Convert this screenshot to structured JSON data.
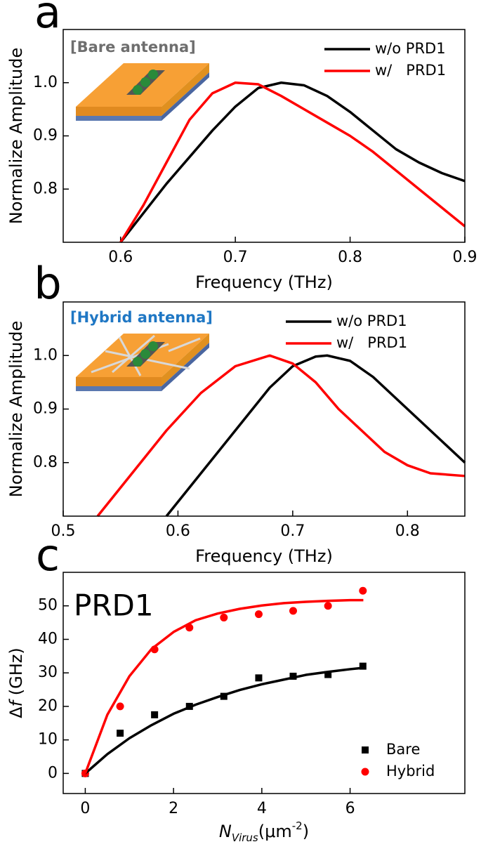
{
  "chart_data": [
    {
      "type": "line",
      "panel": "a",
      "annotation": "[Bare antenna]",
      "annotation_color": "#6e6e6e",
      "xlabel": "Frequency (THz)",
      "ylabel": "Normalize Amplitude",
      "xlim": [
        0.55,
        0.9
      ],
      "xticks": [
        0.6,
        0.7,
        0.8,
        0.9
      ],
      "ylim": [
        0.7,
        1.1
      ],
      "yticks": [
        0.8,
        0.9,
        {
          "value": 1,
          "label": "1.0"
        }
      ],
      "series": [
        {
          "name": "w/o PRD1",
          "color": "#000000",
          "x": [
            0.6,
            0.62,
            0.64,
            0.66,
            0.68,
            0.7,
            0.72,
            0.74,
            0.76,
            0.78,
            0.8,
            0.82,
            0.84,
            0.86,
            0.88,
            0.9
          ],
          "values": [
            0.7,
            0.755,
            0.81,
            0.86,
            0.91,
            0.955,
            0.99,
            1.0,
            0.995,
            0.975,
            0.945,
            0.91,
            0.875,
            0.85,
            0.83,
            0.815
          ]
        },
        {
          "name": "w/   PRD1",
          "color": "#ff0000",
          "x": [
            0.6,
            0.62,
            0.64,
            0.66,
            0.68,
            0.7,
            0.72,
            0.74,
            0.76,
            0.78,
            0.8,
            0.82,
            0.84,
            0.86,
            0.88,
            0.9
          ],
          "values": [
            0.7,
            0.77,
            0.85,
            0.93,
            0.98,
            1.0,
            0.997,
            0.975,
            0.95,
            0.925,
            0.9,
            0.87,
            0.835,
            0.8,
            0.765,
            0.73
          ]
        }
      ]
    },
    {
      "type": "line",
      "panel": "b",
      "annotation": "[Hybrid antenna]",
      "annotation_color": "#1f77c4",
      "xlabel": "Frequency (THz)",
      "ylabel": "Normalize Amplitude",
      "xlim": [
        0.5,
        0.85
      ],
      "xticks": [
        0.5,
        0.6,
        0.7,
        0.8
      ],
      "ylim": [
        0.7,
        1.1
      ],
      "yticks": [
        0.8,
        0.9,
        {
          "value": 1,
          "label": "1.0"
        }
      ],
      "series": [
        {
          "name": "w/o PRD1",
          "color": "#000000",
          "x": [
            0.59,
            0.62,
            0.65,
            0.68,
            0.7,
            0.72,
            0.73,
            0.75,
            0.77,
            0.79,
            0.81,
            0.83,
            0.85
          ],
          "values": [
            0.7,
            0.78,
            0.86,
            0.94,
            0.98,
            0.998,
            1.0,
            0.99,
            0.96,
            0.92,
            0.88,
            0.84,
            0.8
          ]
        },
        {
          "name": "w/   PRD1",
          "color": "#ff0000",
          "x": [
            0.53,
            0.56,
            0.59,
            0.62,
            0.65,
            0.68,
            0.7,
            0.72,
            0.74,
            0.76,
            0.78,
            0.8,
            0.82,
            0.85
          ],
          "values": [
            0.7,
            0.78,
            0.86,
            0.93,
            0.98,
            1.0,
            0.985,
            0.95,
            0.9,
            0.86,
            0.82,
            0.795,
            0.78,
            0.775
          ]
        }
      ]
    },
    {
      "type": "scatter",
      "panel": "c",
      "annotation": "PRD1",
      "annotation_color": "#000000",
      "xlabel": {
        "main": "N",
        "sub": "Virus",
        "unit": "(μm",
        "sup": "-2",
        "end": ")"
      },
      "ylabel": {
        "pre": "Δ",
        "var": "f",
        "post": " (GHz)"
      },
      "xlim": [
        -0.5,
        8.6
      ],
      "xticks": [
        0,
        2,
        4,
        6
      ],
      "ylim": [
        -6,
        60
      ],
      "yticks": [
        0,
        10,
        20,
        30,
        40,
        50
      ],
      "series": [
        {
          "name": "Bare",
          "color": "#000000",
          "marker": "square",
          "x": [
            0,
            0.79,
            1.57,
            2.36,
            3.14,
            3.93,
            4.71,
            5.5,
            6.29
          ],
          "values": [
            0,
            12,
            17.5,
            20,
            23,
            28.5,
            29,
            29.5,
            32
          ]
        },
        {
          "name": "Hybrid",
          "color": "#ff0000",
          "marker": "circle",
          "x": [
            0,
            0.79,
            1.57,
            2.36,
            3.14,
            3.93,
            4.71,
            5.5,
            6.29
          ],
          "values": [
            0,
            20,
            37,
            43.5,
            46.5,
            47.5,
            48.5,
            50,
            54.5
          ]
        },
        {
          "color": "#000000",
          "marker": "line",
          "x": [
            0,
            0.5,
            1,
            1.5,
            2,
            2.5,
            3,
            3.5,
            4,
            4.5,
            5,
            5.5,
            6,
            6.3
          ],
          "values": [
            0,
            5.74,
            10.5,
            14.4,
            17.8,
            20.5,
            22.8,
            24.9,
            26.6,
            28.0,
            29.4,
            30.3,
            31.1,
            31.5
          ]
        },
        {
          "color": "#ff0000",
          "marker": "line",
          "x": [
            0,
            0.5,
            1,
            1.5,
            2,
            2.5,
            3,
            3.5,
            4,
            4.5,
            5,
            5.5,
            6,
            6.3
          ],
          "values": [
            0,
            17.5,
            29.0,
            37.1,
            42.2,
            45.7,
            47.7,
            49.1,
            50.1,
            50.8,
            51.2,
            51.5,
            51.7,
            51.7
          ]
        }
      ]
    }
  ]
}
